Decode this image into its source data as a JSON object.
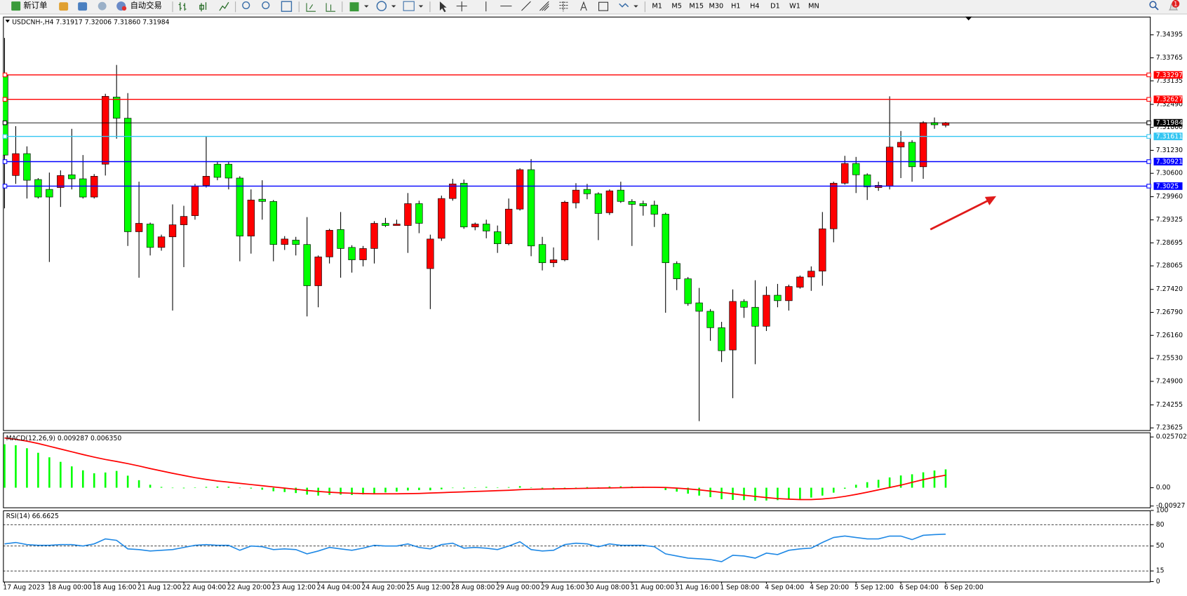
{
  "toolbar": {
    "new_order": "新订单",
    "auto_trading": "自动交易",
    "timeframes": [
      "M1",
      "M5",
      "M15",
      "M30",
      "H1",
      "H4",
      "D1",
      "W1",
      "MN"
    ],
    "badge": "1"
  },
  "chart_data": [
    {
      "type": "candlestick",
      "title": "USDCNH-,H4 7.31917 7.32006 7.31860 7.31984",
      "categories": [
        "17 Aug 2023",
        null,
        null,
        null,
        "18 Aug 00:00",
        null,
        null,
        null,
        "18 Aug 16:00",
        null,
        null,
        null,
        "21 Aug 12:00",
        null,
        null,
        null,
        "22 Aug 04:00",
        null,
        null,
        null,
        "22 Aug 20:00",
        null,
        null,
        null,
        "23 Aug 12:00",
        null,
        null,
        null,
        "24 Aug 04:00",
        null,
        null,
        null,
        "24 Aug 20:00",
        null,
        null,
        null,
        "25 Aug 12:00",
        null,
        null,
        null,
        "28 Aug 08:00",
        null,
        null,
        null,
        "29 Aug 00:00",
        null,
        null,
        null,
        "29 Aug 16:00",
        null,
        null,
        null,
        "30 Aug 08:00",
        null,
        null,
        null,
        "31 Aug 00:00",
        null,
        null,
        null,
        "31 Aug 16:00",
        null,
        null,
        null,
        "1 Sep 08:00",
        null,
        null,
        null,
        "4 Sep 04:00",
        null,
        null,
        null,
        "4 Sep 20:00",
        null,
        null,
        null,
        "5 Sep 12:00",
        null,
        null,
        null,
        "6 Sep 04:00",
        null,
        null,
        null,
        "6 Sep 20:00"
      ],
      "open": [
        7.3328,
        7.3054,
        7.3114,
        7.3043,
        7.3016,
        7.3021,
        7.3056,
        7.3045,
        7.2995,
        7.3085,
        7.3269,
        7.3211,
        7.29,
        7.2921,
        7.2857,
        7.2886,
        7.2919,
        7.2944,
        7.3027,
        7.3085,
        7.3085,
        7.3047,
        7.2888,
        7.2989,
        7.2983,
        7.2865,
        7.2877,
        7.2865,
        7.2752,
        7.2831,
        7.2906,
        7.2857,
        7.2823,
        7.2854,
        7.2923,
        7.2917,
        7.2917,
        7.2977,
        7.2799,
        7.2882,
        7.2991,
        7.3033,
        7.2913,
        7.2921,
        7.29,
        7.2867,
        7.2962,
        7.307,
        7.2865,
        7.2815,
        7.2823,
        7.2979,
        7.3016,
        7.3004,
        7.2952,
        7.3014,
        7.2983,
        7.2977,
        7.2973,
        7.2948,
        7.2813,
        7.2771,
        7.2705,
        7.2682,
        7.2637,
        7.2576,
        7.2709,
        7.2693,
        7.2641,
        7.2726,
        7.2711,
        7.2748,
        7.2776,
        7.2792,
        7.2908,
        7.3033,
        7.3087,
        7.3056,
        7.3021,
        7.3025,
        7.3132,
        7.3145,
        7.3078,
        7.3199,
        7.31917
      ],
      "high": [
        7.3431,
        7.3189,
        7.3134,
        7.3047,
        7.3062,
        7.3068,
        7.3182,
        7.311,
        7.3058,
        7.3278,
        7.3357,
        7.328,
        7.3037,
        7.2925,
        7.2892,
        7.2975,
        7.2971,
        7.3031,
        7.3162,
        7.3091,
        7.3091,
        7.3052,
        7.3016,
        7.3041,
        7.2987,
        7.2888,
        7.2886,
        7.294,
        7.2835,
        7.2908,
        7.2954,
        7.2863,
        7.2861,
        7.2929,
        7.2938,
        7.2933,
        7.3006,
        7.2985,
        7.2892,
        7.2999,
        7.3045,
        7.3043,
        7.2925,
        7.2933,
        7.2917,
        7.2991,
        7.3074,
        7.3099,
        7.2886,
        7.2857,
        7.2985,
        7.3033,
        7.3031,
        7.3008,
        7.3016,
        7.3037,
        7.2989,
        7.2985,
        7.2985,
        7.2952,
        7.2819,
        7.2776,
        7.2746,
        7.2688,
        7.2653,
        7.2742,
        7.2715,
        7.2767,
        7.275,
        7.2757,
        7.2755,
        7.278,
        7.2805,
        7.2954,
        7.3037,
        7.3108,
        7.3105,
        7.306,
        7.3037,
        7.3271,
        7.3176,
        7.3151,
        7.3203,
        7.3213,
        7.32006
      ],
      "low": [
        7.2964,
        7.3031,
        7.2991,
        7.2991,
        7.2817,
        7.2968,
        7.3016,
        7.2991,
        7.2991,
        7.3054,
        7.3155,
        7.2861,
        7.2774,
        7.2835,
        7.2848,
        7.2684,
        7.2803,
        7.2933,
        7.3021,
        7.3041,
        7.3016,
        7.2819,
        7.284,
        7.2933,
        7.2819,
        7.285,
        7.2835,
        7.2668,
        7.2693,
        7.2813,
        7.2774,
        7.2788,
        7.2805,
        7.2813,
        7.2913,
        7.2917,
        7.2842,
        7.2896,
        7.2688,
        7.2875,
        7.2985,
        7.2908,
        7.2904,
        7.2882,
        7.2842,
        7.2863,
        7.2958,
        7.2833,
        7.2794,
        7.2803,
        7.2819,
        7.2964,
        7.2989,
        7.2877,
        7.2946,
        7.2979,
        7.2861,
        7.2944,
        7.2913,
        7.2678,
        7.274,
        7.2697,
        7.2381,
        7.2601,
        7.2543,
        7.2444,
        7.2664,
        7.2537,
        7.2628,
        7.2693,
        7.2684,
        7.2744,
        7.2738,
        7.2752,
        7.2871,
        7.3029,
        7.3006,
        7.2987,
        7.3012,
        7.3016,
        7.3047,
        7.3037,
        7.3045,
        7.3182,
        7.3186
      ],
      "close": [
        7.311,
        7.3114,
        7.3041,
        7.2995,
        7.2995,
        7.3054,
        7.3045,
        7.2995,
        7.3052,
        7.3271,
        7.3211,
        7.29,
        7.2923,
        7.2857,
        7.2886,
        7.2919,
        7.2942,
        7.3025,
        7.3052,
        7.3049,
        7.3047,
        7.2888,
        7.2987,
        7.2983,
        7.2865,
        7.288,
        7.2865,
        7.2752,
        7.2831,
        7.2904,
        7.2854,
        7.2823,
        7.2854,
        7.2923,
        7.2917,
        7.2921,
        7.2977,
        7.2923,
        7.288,
        7.2991,
        7.3031,
        7.2913,
        7.2921,
        7.2902,
        7.2867,
        7.2962,
        7.307,
        7.2861,
        7.2815,
        7.2823,
        7.2981,
        7.3014,
        7.3004,
        7.295,
        7.3012,
        7.2983,
        7.2975,
        7.2971,
        7.2948,
        7.2815,
        7.2771,
        7.2703,
        7.2682,
        7.2637,
        7.2574,
        7.2709,
        7.2693,
        7.2641,
        7.2726,
        7.2711,
        7.275,
        7.2776,
        7.2792,
        7.2908,
        7.3033,
        7.3087,
        7.3056,
        7.3023,
        7.3027,
        7.3132,
        7.3145,
        7.3078,
        7.3199,
        7.3193,
        7.31984
      ],
      "up_color": "#ff0000",
      "down_color": "#00ff00",
      "ylim": [
        7.23563,
        7.34893
      ],
      "yticks": [
        7.34395,
        7.33765,
        7.33135,
        {
          "value": 7.3249,
          "label": "7.32490"
        },
        {
          "value": 7.3186,
          "label": "7.31860"
        },
        {
          "value": 7.3123,
          "label": "7.31230"
        },
        {
          "value": 7.306,
          "label": "7.30600"
        },
        {
          "value": 7.2996,
          "label": "7.29960"
        },
        7.29325,
        7.28695,
        7.28065,
        {
          "value": 7.2742,
          "label": "7.27420"
        },
        {
          "value": 7.2679,
          "label": "7.26790"
        },
        {
          "value": 7.2616,
          "label": "7.26160"
        },
        {
          "value": 7.2553,
          "label": "7.25530"
        },
        {
          "value": 7.249,
          "label": "7.24900"
        },
        7.24255,
        7.23625
      ],
      "levels": [
        {
          "value": 7.33297,
          "color": "#ff0000"
        },
        {
          "value": 7.32627,
          "color": "#ff0000"
        },
        {
          "value": 7.31984,
          "color": "#000000"
        },
        {
          "value": 7.31611,
          "color": "#33c6f2"
        },
        {
          "value": 7.30921,
          "color": "#0000ff"
        },
        {
          "value": 7.3025,
          "color": "#0000ff"
        }
      ]
    },
    {
      "type": "macd",
      "title": "MACD(12,26,9) 0.009287 0.006350",
      "histogram": {
        "color": "#00ff00",
        "values": [
          0.022,
          0.0215,
          0.02,
          0.0177,
          0.0154,
          0.0131,
          0.0108,
          0.0088,
          0.0073,
          0.0077,
          0.0085,
          0.0061,
          0.0038,
          0.0015,
          0.0004,
          -0.0002,
          -0.0003,
          0.0001,
          0.0004,
          0.0006,
          0.0005,
          -0.0002,
          -0.0004,
          -0.001,
          -0.0018,
          -0.0022,
          -0.0027,
          -0.0035,
          -0.004,
          -0.0036,
          -0.0035,
          -0.0037,
          -0.0034,
          -0.0028,
          -0.0024,
          -0.002,
          -0.0014,
          -0.0012,
          -0.0013,
          -0.0008,
          -0.0002,
          -0.0004,
          0.0002,
          0.0004,
          0.0001,
          0.0003,
          0.0008,
          0.0002,
          -0.0004,
          -0.0009,
          -0.0004,
          0.0001,
          0.0003,
          0.0002,
          0.0006,
          0.0007,
          0.0006,
          0.0005,
          0.0003,
          -0.0012,
          -0.002,
          -0.003,
          -0.004,
          -0.0048,
          -0.0058,
          -0.0062,
          -0.0063,
          -0.0066,
          -0.0065,
          -0.0063,
          -0.006,
          -0.0058,
          -0.005,
          -0.004,
          -0.0025,
          -0.0005,
          0.0015,
          0.0028,
          0.004,
          0.0052,
          0.0062,
          0.0068,
          0.0078,
          0.0087,
          0.009287
        ]
      },
      "signal": {
        "color": "#ff0000",
        "values": [
          0.0252,
          0.0245,
          0.0236,
          0.0224,
          0.021,
          0.0196,
          0.0182,
          0.0168,
          0.0155,
          0.0143,
          0.0133,
          0.0122,
          0.011,
          0.0097,
          0.0085,
          0.0073,
          0.0062,
          0.0051,
          0.0042,
          0.0034,
          0.0028,
          0.0022,
          0.0016,
          0.001,
          0.0004,
          -0.0002,
          -0.0008,
          -0.0014,
          -0.0019,
          -0.0023,
          -0.0026,
          -0.0028,
          -0.003,
          -0.0031,
          -0.0031,
          -0.0031,
          -0.003,
          -0.0029,
          -0.0027,
          -0.0025,
          -0.0023,
          -0.0021,
          -0.0019,
          -0.0017,
          -0.0015,
          -0.0013,
          -0.001,
          -0.0008,
          -0.0007,
          -0.0006,
          -0.0005,
          -0.0004,
          -0.0003,
          -0.0002,
          -0.0001,
          0.0,
          0.0001,
          0.0002,
          0.0002,
          0.0001,
          -0.0002,
          -0.0006,
          -0.0011,
          -0.0017,
          -0.0024,
          -0.0031,
          -0.0038,
          -0.0044,
          -0.005,
          -0.0055,
          -0.0058,
          -0.006,
          -0.006,
          -0.0057,
          -0.0052,
          -0.0044,
          -0.0034,
          -0.0023,
          -0.0011,
          0.0001,
          0.0013,
          0.0027,
          0.0041,
          0.0053,
          0.00635
        ]
      },
      "ylim": [
        -0.00997,
        0.028
      ],
      "yticks": [
        0.025702,
        {
          "value": 0,
          "label": "0.00"
        },
        -0.00927
      ]
    },
    {
      "type": "line",
      "title": "RSI(14) 66.6625",
      "color": "#1e88e5",
      "values": [
        53,
        55,
        52,
        51,
        51,
        52,
        52,
        50,
        53,
        60,
        58,
        46,
        45,
        43,
        44,
        45,
        48,
        51,
        52,
        51,
        51,
        44,
        50,
        49,
        45,
        46,
        45,
        39,
        43,
        48,
        46,
        44,
        47,
        51,
        50,
        50,
        53,
        48,
        46,
        52,
        54,
        47,
        48,
        47,
        45,
        50,
        56,
        45,
        43,
        44,
        52,
        54,
        53,
        49,
        53,
        51,
        51,
        51,
        49,
        39,
        36,
        33,
        32,
        31,
        28,
        37,
        36,
        33,
        40,
        38,
        44,
        46,
        47,
        55,
        62,
        64,
        62,
        60,
        60,
        64,
        64,
        59,
        65,
        66,
        66.6625
      ],
      "ylim": [
        0,
        100
      ],
      "yticks": [
        100,
        80,
        50,
        15,
        0
      ]
    }
  ]
}
